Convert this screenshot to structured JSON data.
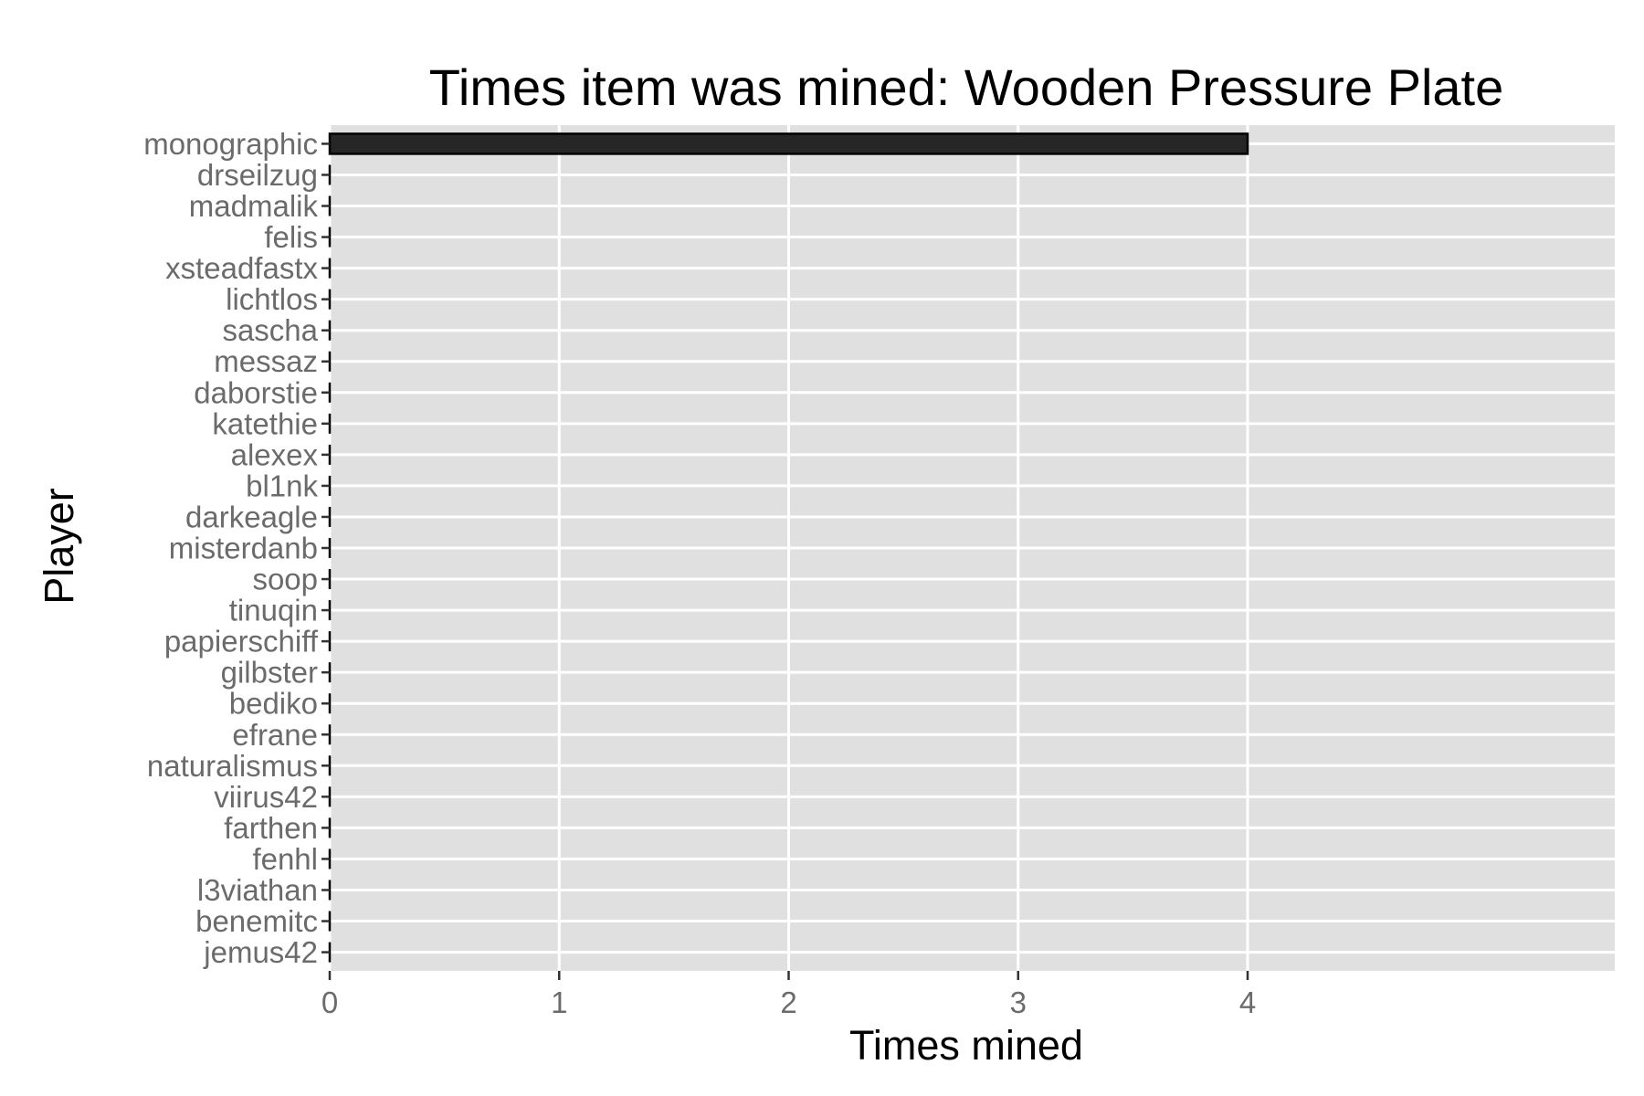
{
  "chart_data": {
    "type": "bar",
    "orientation": "horizontal",
    "title": "Times item was mined: Wooden Pressure Plate",
    "xlabel": "Times mined",
    "ylabel": "Player",
    "xlim": [
      0,
      5.6
    ],
    "x_ticks": [
      0,
      1,
      2,
      3,
      4
    ],
    "grid": true,
    "legend": "none",
    "colors": {
      "panel": "#e0e0e0",
      "grid": "#ffffff",
      "bar_fill": "#262626",
      "bar_stroke": "#000000",
      "tick_label": "#6b6b6b"
    },
    "categories": [
      "monographic",
      "drseilzug",
      "madmalik",
      "felis",
      "xsteadfastx",
      "lichtlos",
      "sascha",
      "messaz",
      "daborstie",
      "katethie",
      "alexex",
      "bl1nk",
      "darkeagle",
      "misterdanb",
      "soop",
      "tinuqin",
      "papierschiff",
      "gilbster",
      "bediko",
      "efrane",
      "naturalismus",
      "viirus42",
      "farthen",
      "fenhl",
      "l3viathan",
      "benemitc",
      "jemus42"
    ],
    "values": [
      4,
      0,
      0,
      0,
      0,
      0,
      0,
      0,
      0,
      0,
      0,
      0,
      0,
      0,
      0,
      0,
      0,
      0,
      0,
      0,
      0,
      0,
      0,
      0,
      0,
      0,
      0
    ]
  }
}
